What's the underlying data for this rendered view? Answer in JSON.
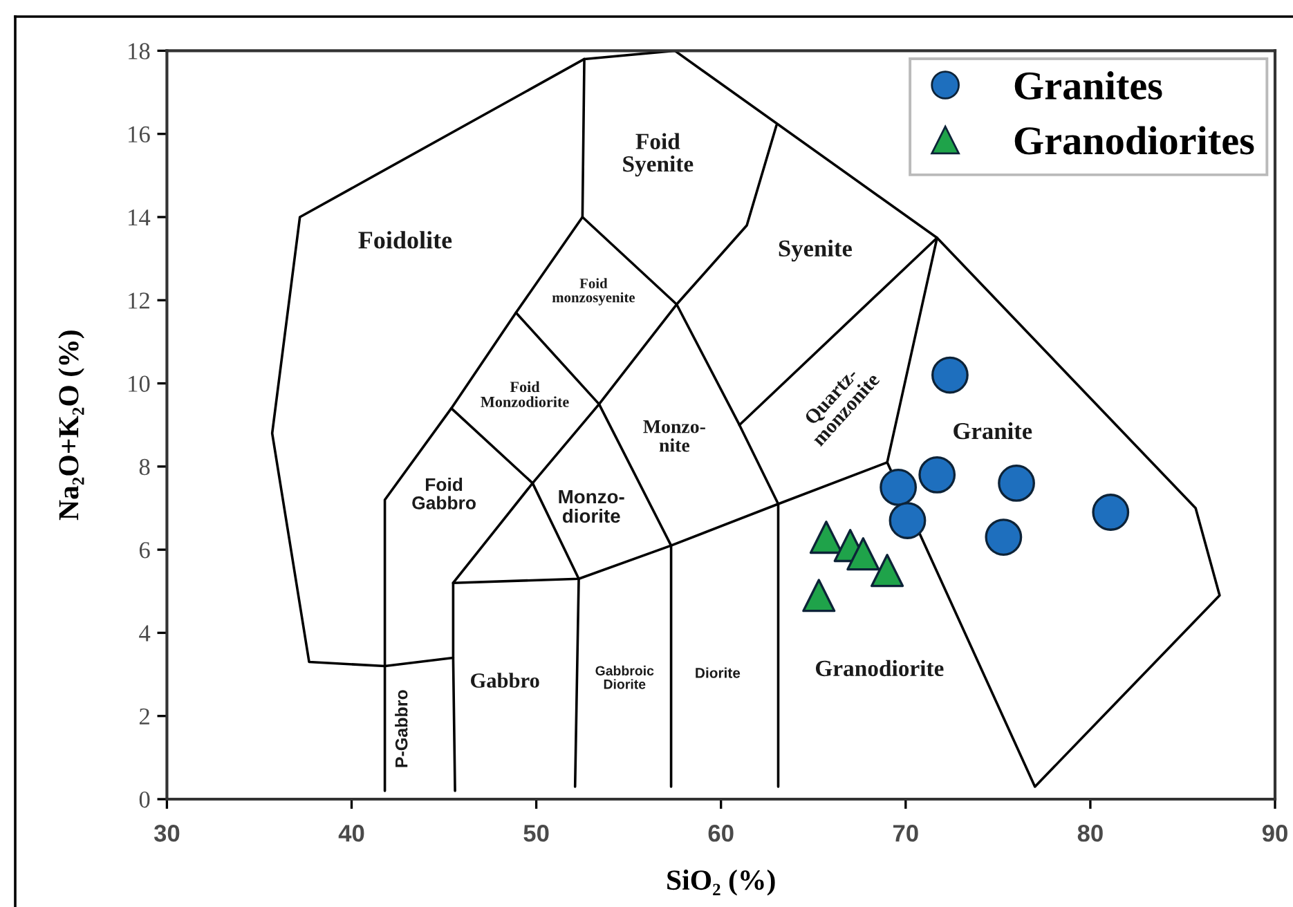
{
  "chart_data": {
    "type": "scatter",
    "xlabel": "SiO₂ (%)",
    "ylabel": "Na₂O+K₂O (%)",
    "xlim": [
      30,
      90
    ],
    "ylim": [
      0,
      18
    ],
    "xticks": [
      30,
      40,
      50,
      60,
      70,
      80,
      90
    ],
    "yticks": [
      0,
      2,
      4,
      6,
      8,
      10,
      12,
      14,
      16,
      18
    ],
    "legend": "top right",
    "series": [
      {
        "type": "line",
        "color": "#000000",
        "marker": "none",
        "x": [
          61.0,
          71.7,
          57.5,
          52.6,
          37.2,
          35.7,
          37.7,
          41.8,
          45.5,
          45.5,
          52.3,
          57.3,
          63.1,
          69.0,
          77.0,
          87.0,
          85.7,
          71.7
        ],
        "values": [
          9.0,
          13.5,
          18.0,
          17.8,
          14.0,
          8.8,
          3.3,
          3.2,
          3.4,
          5.2,
          5.3,
          6.1,
          7.1,
          8.1,
          0.3,
          4.9,
          7.0,
          13.5
        ]
      },
      {
        "type": "line",
        "color": "#000000",
        "marker": "none",
        "x": [
          41.8,
          41.8,
          45.4,
          48.9,
          52.5,
          52.6
        ],
        "values": [
          0.2,
          7.2,
          9.4,
          11.7,
          14.0,
          17.8
        ]
      },
      {
        "type": "line",
        "color": "#000000",
        "marker": "none",
        "x": [
          45.6,
          45.5
        ],
        "values": [
          0.2,
          3.4
        ]
      },
      {
        "type": "line",
        "color": "#000000",
        "marker": "none",
        "x": [
          52.1,
          52.3
        ],
        "values": [
          0.3,
          5.3
        ]
      },
      {
        "type": "line",
        "color": "#000000",
        "marker": "none",
        "x": [
          57.3,
          57.3
        ],
        "values": [
          0.3,
          6.1
        ]
      },
      {
        "type": "line",
        "color": "#000000",
        "marker": "none",
        "x": [
          63.1,
          63.1
        ],
        "values": [
          0.3,
          7.1
        ]
      },
      {
        "type": "line",
        "color": "#000000",
        "marker": "none",
        "x": [
          45.5,
          49.8,
          53.4,
          57.6,
          61.4,
          63.0
        ],
        "values": [
          5.2,
          7.6,
          9.5,
          11.9,
          13.8,
          16.2
        ]
      },
      {
        "type": "line",
        "color": "#000000",
        "marker": "none",
        "x": [
          45.4,
          49.8,
          52.3
        ],
        "values": [
          9.4,
          7.6,
          5.3
        ]
      },
      {
        "type": "line",
        "color": "#000000",
        "marker": "none",
        "x": [
          48.9,
          53.4,
          57.3
        ],
        "values": [
          11.7,
          9.5,
          6.1
        ]
      },
      {
        "type": "line",
        "color": "#000000",
        "marker": "none",
        "x": [
          52.5,
          57.6,
          61.0,
          63.1
        ],
        "values": [
          14.0,
          11.9,
          9.0,
          7.1
        ]
      },
      {
        "type": "line",
        "color": "#000000",
        "marker": "none",
        "x": [
          69.0,
          71.7
        ],
        "values": [
          8.1,
          13.5
        ]
      },
      {
        "name": "Granites",
        "color": "#1e6fbe",
        "marker": "circle",
        "x": [
          72.4,
          71.7,
          69.6,
          70.1,
          76.0,
          75.3,
          81.1
        ],
        "values": [
          10.2,
          7.8,
          7.5,
          6.7,
          7.6,
          6.3,
          6.9
        ]
      },
      {
        "name": "Granodiorites",
        "color": "#1fa34a",
        "marker": "triangle",
        "x": [
          65.7,
          67.0,
          67.7,
          69.0,
          65.3
        ],
        "values": [
          6.3,
          6.1,
          5.9,
          5.5,
          4.9
        ]
      }
    ],
    "annotations": [
      "Foidolite",
      "Foid\nSyenite",
      "Syenite",
      "Foid\nmonzosyenite",
      "Foid\nMonzodiorite",
      "Monzo-\nnite",
      "Foid\nGabbro",
      "Monzo-\ndiorite",
      "Quartz-\nmonzonite",
      "Granite",
      "Gabbro",
      "Gabbroic\nDiorite",
      "Diorite",
      "Granodiorite",
      "P-Gabbro"
    ]
  }
}
